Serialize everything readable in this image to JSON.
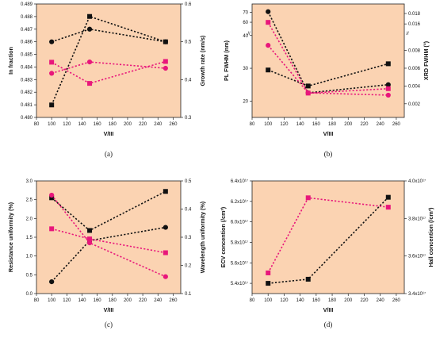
{
  "colors": {
    "panel_bg": "#fbd3b2",
    "black": "#111111",
    "pink": "#e8177b"
  },
  "chart_data": [
    {
      "panel": "(a)",
      "type": "line",
      "xlabel": "V/III",
      "xlim": [
        80,
        270
      ],
      "xticks": [
        "80",
        "100",
        "120",
        "140",
        "160",
        "180",
        "200",
        "220",
        "240",
        "260"
      ],
      "ylabel_left": "In fraction",
      "ylim_left": [
        0.48,
        0.489
      ],
      "yticks_left": [
        "0.480",
        "0.481",
        "0.482",
        "0.483",
        "0.484",
        "0.485",
        "0.486",
        "0.487",
        "0.488",
        "0.489"
      ],
      "ylabel_right": "Growth rate (nm/s)",
      "ylim_right": [
        0.3,
        0.6
      ],
      "yticks_right": [
        "0.3",
        "0.4",
        "0.5",
        "0.6"
      ],
      "series": [
        {
          "color": "black",
          "marker": "circle",
          "axis": "left",
          "x": [
            100,
            150,
            250
          ],
          "y": [
            0.486,
            0.487,
            0.486
          ]
        },
        {
          "color": "black",
          "marker": "square",
          "axis": "right",
          "x": [
            100,
            150,
            250
          ],
          "y": [
            0.333,
            0.567,
            0.5
          ]
        },
        {
          "color": "pink",
          "marker": "circle",
          "axis": "left",
          "x": [
            100,
            150,
            250
          ],
          "y": [
            0.4835,
            0.4844,
            0.4839
          ]
        },
        {
          "color": "pink",
          "marker": "square",
          "axis": "right",
          "x": [
            100,
            150,
            250
          ],
          "y": [
            0.446,
            0.39,
            0.448
          ]
        }
      ]
    },
    {
      "panel": "(b)",
      "type": "line",
      "xlabel": "V/III",
      "xlim": [
        80,
        270
      ],
      "xticks": [
        "80",
        "100",
        "120",
        "140",
        "160",
        "180",
        "200",
        "220",
        "240",
        "260"
      ],
      "ylabel_left": "PL FWHM (nm)",
      "yticks_left": [
        "20",
        "30",
        "40",
        "60",
        "70"
      ],
      "ylabel_right": "XRD FWHM  (°)",
      "yticks_right": [
        "0.002",
        "0.004",
        "0.006",
        "0.008",
        "0.016",
        "0.018"
      ],
      "series": [
        {
          "color": "black",
          "marker": "circle",
          "axis": "left",
          "x": [
            100,
            150,
            250
          ],
          "y": [
            70.5,
            22.5,
            25
          ]
        },
        {
          "color": "black",
          "marker": "square",
          "axis": "right",
          "x": [
            100,
            150,
            250
          ],
          "y": [
            0.0058,
            0.004,
            0.0065
          ]
        },
        {
          "color": "pink",
          "marker": "circle",
          "axis": "left",
          "x": [
            100,
            150,
            250
          ],
          "y": [
            37,
            22.5,
            21.8
          ]
        },
        {
          "color": "pink",
          "marker": "square",
          "axis": "right",
          "x": [
            100,
            150,
            250
          ],
          "y": [
            0.0163,
            0.0032,
            0.0037
          ]
        }
      ]
    },
    {
      "panel": "(c)",
      "type": "line",
      "xlabel": "V/III",
      "xlim": [
        80,
        270
      ],
      "xticks": [
        "80",
        "100",
        "120",
        "140",
        "160",
        "180",
        "200",
        "220",
        "240",
        "260"
      ],
      "ylabel_left": "Resistance uniformity (%)",
      "ylim_left": [
        0.0,
        3.0
      ],
      "yticks_left": [
        "0.0",
        "0.5",
        "1.0",
        "1.5",
        "2.0",
        "2.5",
        "3.0"
      ],
      "ylabel_right": "Wavelength uniformity (%)",
      "ylim_right": [
        0.1,
        0.5
      ],
      "yticks_right": [
        "0.1",
        "0.2",
        "0.3",
        "0.4",
        "0.5"
      ],
      "series": [
        {
          "color": "black",
          "marker": "square",
          "axis": "left",
          "x": [
            100,
            150,
            250
          ],
          "y": [
            2.55,
            1.68,
            2.72
          ]
        },
        {
          "color": "black",
          "marker": "circle",
          "axis": "right",
          "x": [
            100,
            150,
            250
          ],
          "y": [
            0.142,
            0.288,
            0.335
          ]
        },
        {
          "color": "pink",
          "marker": "circle",
          "axis": "left",
          "x": [
            100,
            150,
            250
          ],
          "y": [
            2.62,
            1.35,
            0.45
          ]
        },
        {
          "color": "pink",
          "marker": "square",
          "axis": "right",
          "x": [
            100,
            150,
            250
          ],
          "y": [
            0.33,
            0.294,
            0.245
          ]
        }
      ]
    },
    {
      "panel": "(d)",
      "type": "line",
      "xlabel": "V/III",
      "xlim": [
        80,
        270
      ],
      "xticks": [
        "80",
        "100",
        "120",
        "140",
        "160",
        "180",
        "200",
        "220",
        "240",
        "260"
      ],
      "ylabel_left": "ECV concention (/cm³)",
      "ylim_left": [
        5.3e+17,
        6.4e+17
      ],
      "yticks_left": [
        "5.4x10¹⁷",
        "5.6x10¹⁷",
        "5.8x10¹⁷",
        "6.0x10¹⁷",
        "6.2x10¹⁷",
        "6.4x10¹⁷"
      ],
      "ylabel_right": "Hall concention (/cm³)",
      "ylim_right": [
        3.4e+17,
        4e+17
      ],
      "yticks_right": [
        "3.4x10¹⁷",
        "3.6x10¹⁷",
        "3.8x10¹⁷",
        "4.0x10¹⁷"
      ],
      "series": [
        {
          "color": "black",
          "marker": "square",
          "axis": "left",
          "x": [
            100,
            150,
            250
          ],
          "y": [
            5.4e+17,
            5.44e+17,
            6.24e+17
          ]
        },
        {
          "color": "pink",
          "marker": "square",
          "axis": "right",
          "x": [
            100,
            150,
            250
          ],
          "y": [
            3.51e+17,
            3.91e+17,
            3.86e+17
          ]
        }
      ]
    }
  ]
}
